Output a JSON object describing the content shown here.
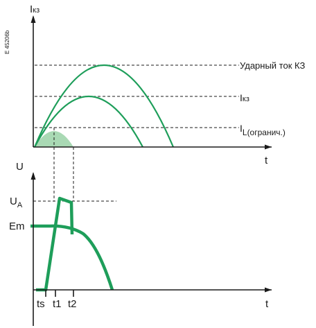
{
  "side_code": "E 45206b",
  "top_chart": {
    "y_axis_label_main": "I",
    "y_axis_label_sub": "кз",
    "x_axis_label": "t",
    "label_peak": "Ударный ток КЗ",
    "label_ikz_main": "I",
    "label_ikz_sub": "кз",
    "label_limit_main": "I",
    "label_limit_sub": "L(огранич.)"
  },
  "bottom_chart": {
    "y_axis_label": "U",
    "x_axis_label": "t",
    "label_ua_main": "U",
    "label_ua_sub": "A",
    "label_em": "Em",
    "tick_ts": "ts",
    "tick_t1": "t1",
    "tick_t2": "t2"
  },
  "colors": {
    "curve": "#1e9e5a",
    "shade": "#a9d9b4",
    "axis": "#1a1a1a"
  }
}
